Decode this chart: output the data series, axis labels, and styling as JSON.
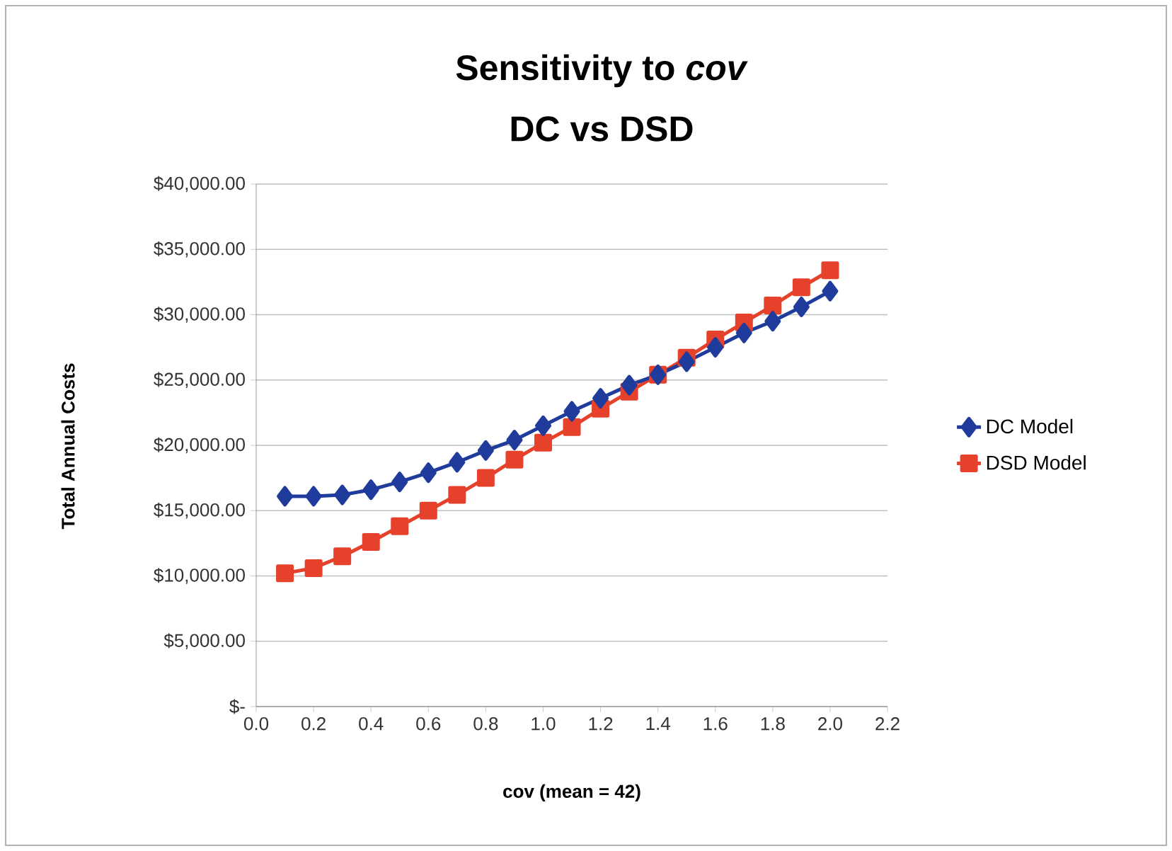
{
  "chart_data": {
    "type": "line",
    "title": "Sensitivity to  *cov*",
    "subtitle": "DC vs DSD",
    "xlabel": "cov (mean = 42)",
    "ylabel": "Total Annual Costs",
    "x": [
      0.1,
      0.2,
      0.3,
      0.4,
      0.5,
      0.6,
      0.7,
      0.8,
      0.9,
      1.0,
      1.1,
      1.2,
      1.3,
      1.4,
      1.5,
      1.6,
      1.7,
      1.8,
      1.9,
      2.0
    ],
    "series": [
      {
        "name": "DC Model",
        "color": "#1f3c9c",
        "marker": "diamond",
        "values": [
          16100,
          16100,
          16200,
          16600,
          17200,
          17900,
          18700,
          19600,
          20400,
          21500,
          22600,
          23600,
          24600,
          25400,
          26400,
          27500,
          28600,
          29500,
          30600,
          31800
        ]
      },
      {
        "name": "DSD Model",
        "color": "#e5412b",
        "marker": "square",
        "values": [
          10200,
          10600,
          11500,
          12600,
          13800,
          15000,
          16200,
          17500,
          18900,
          20200,
          21400,
          22800,
          24100,
          25400,
          26700,
          28100,
          29400,
          30700,
          32100,
          33400
        ]
      }
    ],
    "xlim": [
      0,
      2.2
    ],
    "xticks": [
      {
        "value": 0,
        "label": "0.0"
      },
      {
        "value": 0.2,
        "label": "0.2"
      },
      {
        "value": 0.4,
        "label": "0.4"
      },
      {
        "value": 0.6,
        "label": "0.6"
      },
      {
        "value": 0.8,
        "label": "0.8"
      },
      {
        "value": 1.0,
        "label": "1.0"
      },
      {
        "value": 1.2,
        "label": "1.2"
      },
      {
        "value": 1.4,
        "label": "1.4"
      },
      {
        "value": 1.6,
        "label": "1.6"
      },
      {
        "value": 1.8,
        "label": "1.8"
      },
      {
        "value": 2.0,
        "label": "2.0"
      },
      {
        "value": 2.2,
        "label": "2.2"
      }
    ],
    "ylim": [
      0,
      40000
    ],
    "yticks": [
      {
        "value": 0,
        "label": "$-"
      },
      {
        "value": 5000,
        "label": "$5,000.00"
      },
      {
        "value": 10000,
        "label": "$10,000.00"
      },
      {
        "value": 15000,
        "label": "$15,000.00"
      },
      {
        "value": 20000,
        "label": "$20,000.00"
      },
      {
        "value": 25000,
        "label": "$25,000.00"
      },
      {
        "value": 30000,
        "label": "$30,000.00"
      },
      {
        "value": 35000,
        "label": "$35,000.00"
      },
      {
        "value": 40000,
        "label": "$40,000.00"
      }
    ],
    "grid": "y",
    "legend": "right",
    "line_style": "solid"
  }
}
